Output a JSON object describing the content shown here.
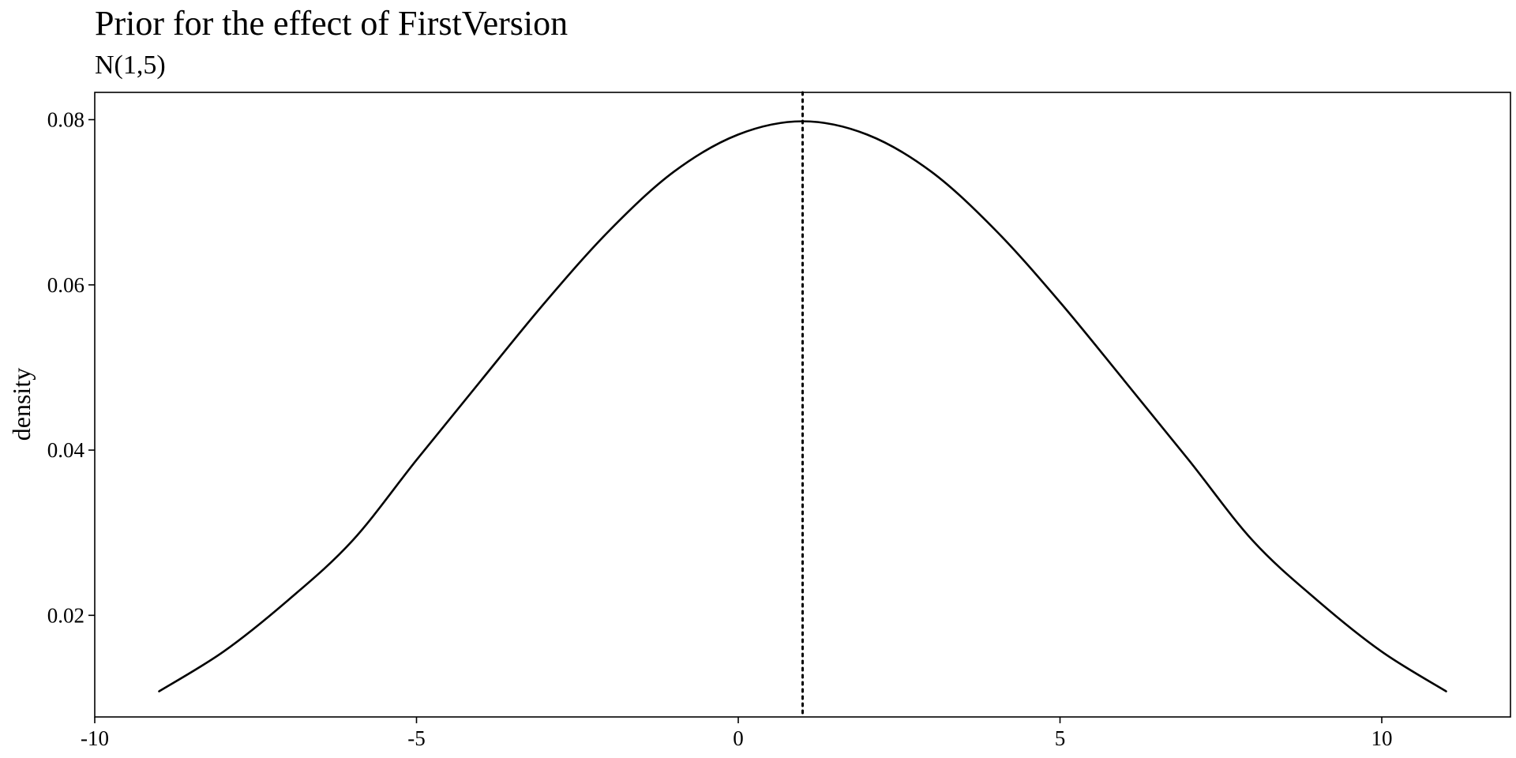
{
  "chart_data": {
    "type": "line",
    "title": "Prior for the effect of FirstVersion",
    "subtitle": "N(1,5)",
    "xlabel": "",
    "ylabel": "density",
    "xlim": [
      -10,
      12
    ],
    "ylim": [
      0.0077,
      0.0833
    ],
    "x_ticks": [
      -10,
      -5,
      0,
      5,
      10
    ],
    "x_tick_labels": [
      "-10",
      "-5",
      "0",
      "5",
      "10"
    ],
    "y_ticks": [
      0.02,
      0.04,
      0.06,
      0.08
    ],
    "y_tick_labels": [
      "0.02",
      "0.04",
      "0.06",
      "0.08"
    ],
    "grid": false,
    "series": [
      {
        "color": "#000000",
        "line_style": "solid",
        "x": [
          -9,
          -8,
          -7,
          -6,
          -5,
          -4,
          -3,
          -2,
          -1,
          0,
          1,
          2,
          3,
          4,
          5,
          6,
          7,
          8,
          9,
          10,
          11
        ],
        "y": [
          0.0108,
          0.0156,
          0.0218,
          0.029,
          0.0388,
          0.0484,
          0.0579,
          0.0666,
          0.0737,
          0.0782,
          0.0798,
          0.0782,
          0.0737,
          0.0666,
          0.0579,
          0.0484,
          0.0388,
          0.029,
          0.0218,
          0.0156,
          0.0108
        ]
      }
    ],
    "reference_line": {
      "orientation": "vertical",
      "x": 1,
      "line_style": "dotted",
      "color": "#000000"
    }
  }
}
